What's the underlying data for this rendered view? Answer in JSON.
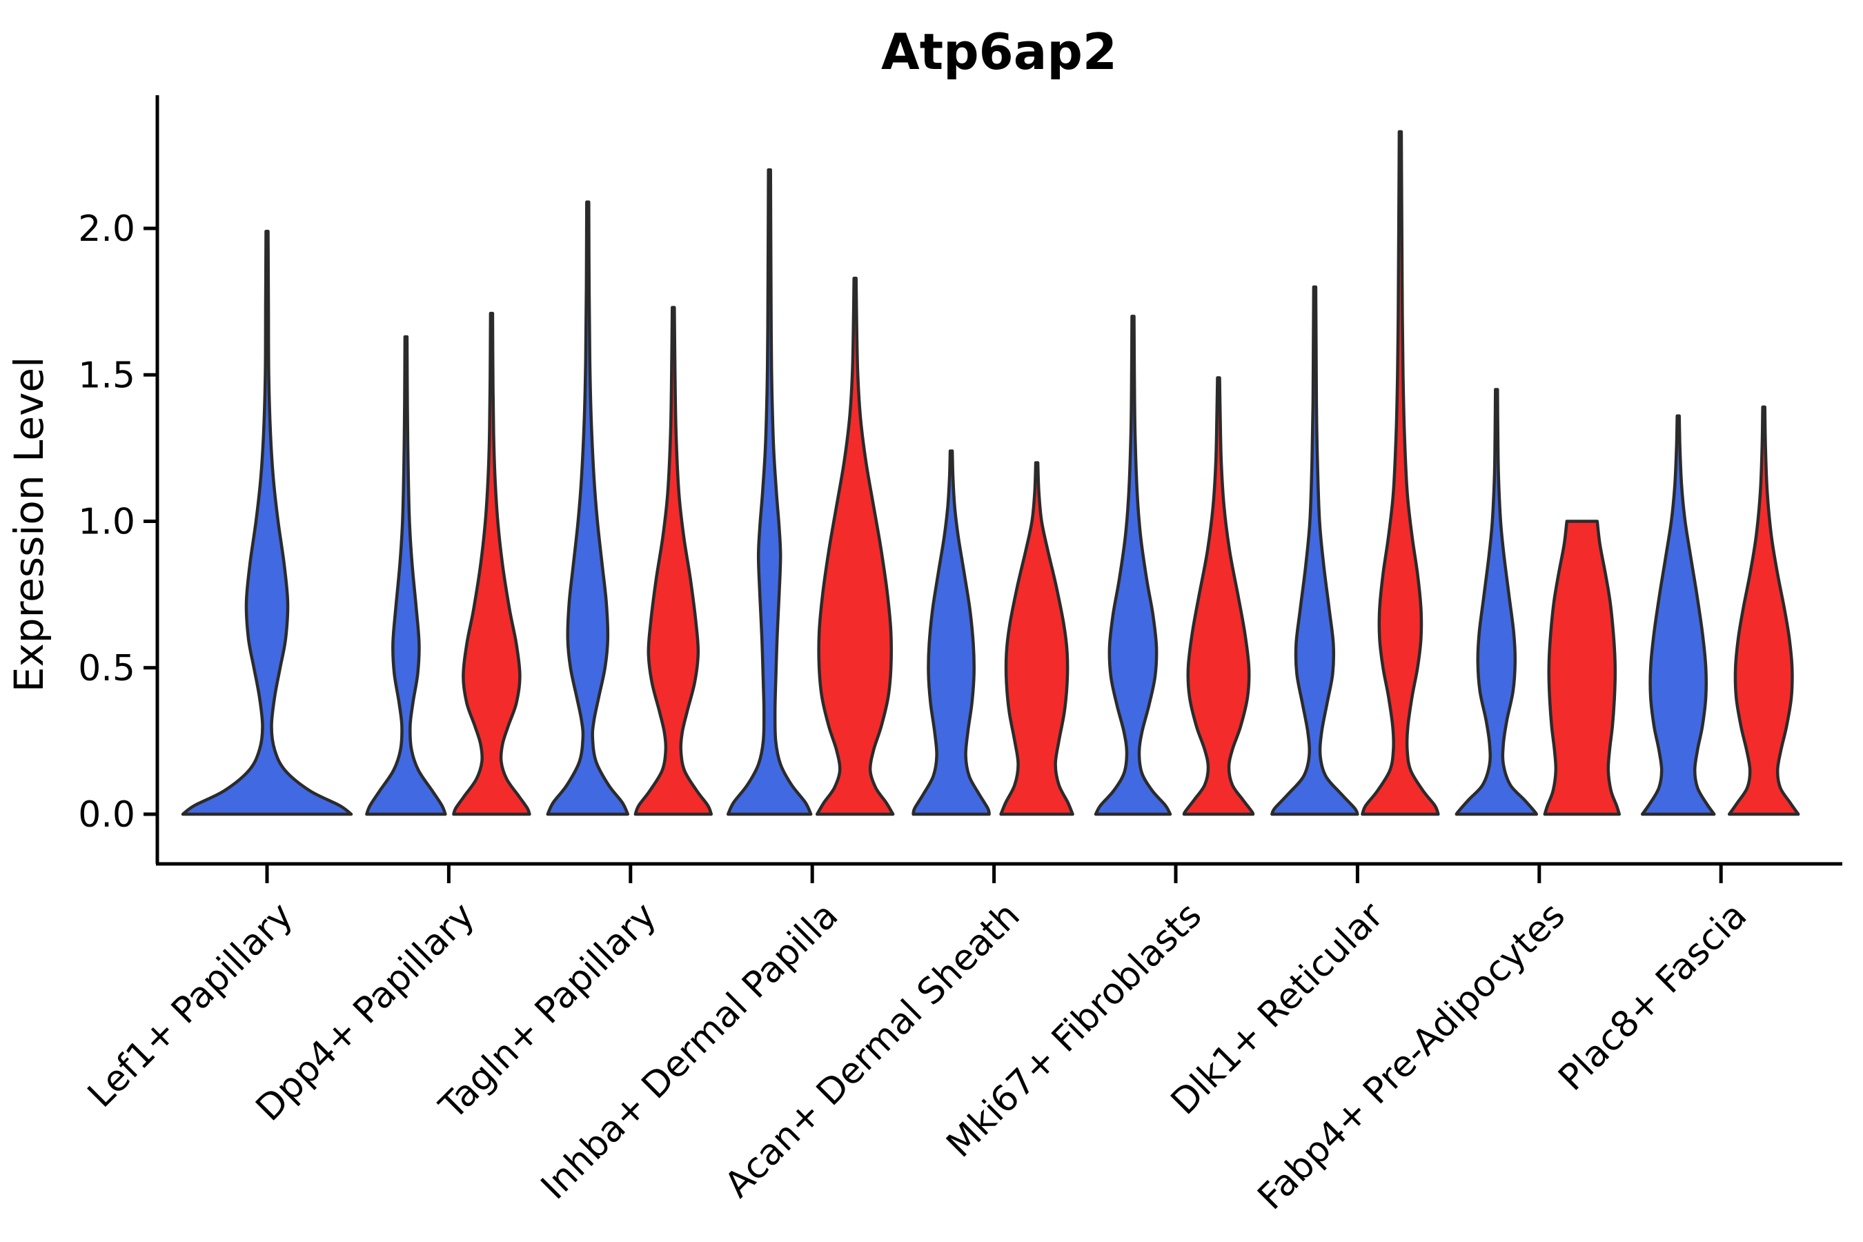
{
  "title": "Atp6ap2",
  "ylabel": "Expression Level",
  "chart_data": {
    "type": "violin",
    "title": "Atp6ap2",
    "xlabel": "",
    "ylabel": "Expression Level",
    "ylim": [
      0,
      2.43
    ],
    "yticks": [
      0.0,
      0.5,
      1.0,
      1.5,
      2.0
    ],
    "ytick_labels": [
      "0.0",
      "0.5",
      "1.0",
      "1.5",
      "2.0"
    ],
    "grid": false,
    "legend": "none",
    "colors": {
      "blue": "#4169E1",
      "red": "#F42B2B",
      "outline": "#2B2B2B",
      "axis": "#000000"
    },
    "categories": [
      "Lef1+ Papillary",
      "Dpp4+ Papillary",
      "Tagln+ Papillary",
      "Inhba+ Dermal Papilla",
      "Acan+ Dermal Sheath",
      "Mki67+ Fibroblasts",
      "Dlk1+ Reticular",
      "Fabp4+ Pre-Adipocytes",
      "Plac8+ Fascia"
    ],
    "violins": [
      {
        "category": "Lef1+ Papillary",
        "group": 0,
        "series": "blue",
        "offset": 0,
        "peak": 1.99,
        "profile": [
          [
            1.99,
            1.5
          ],
          [
            1.75,
            2
          ],
          [
            1.5,
            2.5
          ],
          [
            1.3,
            5
          ],
          [
            1.15,
            9
          ],
          [
            1.0,
            16
          ],
          [
            0.85,
            25
          ],
          [
            0.72,
            30
          ],
          [
            0.6,
            27
          ],
          [
            0.5,
            19
          ],
          [
            0.4,
            11
          ],
          [
            0.3,
            6.5
          ],
          [
            0.22,
            11
          ],
          [
            0.15,
            26
          ],
          [
            0.08,
            62
          ],
          [
            0.03,
            105
          ],
          [
            0.0,
            122
          ]
        ]
      },
      {
        "category": "Dpp4+ Papillary",
        "group": 1,
        "series": "blue",
        "offset": -62,
        "peak": 1.63,
        "profile": [
          [
            1.63,
            1.5
          ],
          [
            1.4,
            2
          ],
          [
            1.2,
            3
          ],
          [
            1.0,
            5
          ],
          [
            0.85,
            9
          ],
          [
            0.7,
            15
          ],
          [
            0.58,
            19
          ],
          [
            0.48,
            17
          ],
          [
            0.38,
            10
          ],
          [
            0.3,
            6
          ],
          [
            0.22,
            8
          ],
          [
            0.15,
            18
          ],
          [
            0.08,
            38
          ],
          [
            0.03,
            52
          ],
          [
            0.0,
            57
          ]
        ]
      },
      {
        "category": "Dpp4+ Papillary",
        "group": 1,
        "series": "red",
        "offset": 62,
        "peak": 1.71,
        "profile": [
          [
            1.71,
            1.5
          ],
          [
            1.5,
            2
          ],
          [
            1.3,
            3
          ],
          [
            1.15,
            5
          ],
          [
            1.0,
            9
          ],
          [
            0.85,
            16
          ],
          [
            0.7,
            26
          ],
          [
            0.58,
            36
          ],
          [
            0.47,
            41
          ],
          [
            0.38,
            36
          ],
          [
            0.3,
            24
          ],
          [
            0.24,
            16
          ],
          [
            0.18,
            14
          ],
          [
            0.12,
            22
          ],
          [
            0.06,
            40
          ],
          [
            0.02,
            52
          ],
          [
            0.0,
            55
          ]
        ]
      },
      {
        "category": "Tagln+ Papillary",
        "group": 2,
        "series": "blue",
        "offset": -62,
        "peak": 2.09,
        "profile": [
          [
            2.09,
            1.5
          ],
          [
            1.8,
            2
          ],
          [
            1.55,
            3
          ],
          [
            1.35,
            5
          ],
          [
            1.15,
            9
          ],
          [
            1.0,
            14
          ],
          [
            0.85,
            21
          ],
          [
            0.72,
            27
          ],
          [
            0.6,
            29
          ],
          [
            0.5,
            25
          ],
          [
            0.4,
            16
          ],
          [
            0.32,
            9
          ],
          [
            0.26,
            7
          ],
          [
            0.18,
            12
          ],
          [
            0.1,
            30
          ],
          [
            0.04,
            50
          ],
          [
            0.0,
            58
          ]
        ]
      },
      {
        "category": "Tagln+ Papillary",
        "group": 2,
        "series": "red",
        "offset": 62,
        "peak": 1.73,
        "profile": [
          [
            1.73,
            1.5
          ],
          [
            1.5,
            2.5
          ],
          [
            1.3,
            4
          ],
          [
            1.1,
            8
          ],
          [
            0.95,
            15
          ],
          [
            0.8,
            25
          ],
          [
            0.65,
            33
          ],
          [
            0.55,
            36
          ],
          [
            0.45,
            31
          ],
          [
            0.35,
            20
          ],
          [
            0.28,
            13
          ],
          [
            0.22,
            11
          ],
          [
            0.15,
            16
          ],
          [
            0.08,
            34
          ],
          [
            0.03,
            50
          ],
          [
            0.0,
            55
          ]
        ]
      },
      {
        "category": "Inhba+ Dermal Papilla",
        "group": 3,
        "series": "blue",
        "offset": -62,
        "peak": 2.2,
        "profile": [
          [
            2.2,
            1.5
          ],
          [
            1.9,
            2
          ],
          [
            1.65,
            2.5
          ],
          [
            1.45,
            3.5
          ],
          [
            1.25,
            6
          ],
          [
            1.1,
            10
          ],
          [
            0.98,
            14
          ],
          [
            0.88,
            16
          ],
          [
            0.75,
            14
          ],
          [
            0.6,
            11
          ],
          [
            0.45,
            9
          ],
          [
            0.35,
            8
          ],
          [
            0.25,
            9
          ],
          [
            0.17,
            16
          ],
          [
            0.1,
            32
          ],
          [
            0.04,
            52
          ],
          [
            0.0,
            60
          ]
        ]
      },
      {
        "category": "Inhba+ Dermal Papilla",
        "group": 3,
        "series": "red",
        "offset": 62,
        "peak": 1.83,
        "profile": [
          [
            1.83,
            1.5
          ],
          [
            1.65,
            2.5
          ],
          [
            1.5,
            4
          ],
          [
            1.35,
            8
          ],
          [
            1.2,
            16
          ],
          [
            1.05,
            27
          ],
          [
            0.9,
            38
          ],
          [
            0.75,
            47
          ],
          [
            0.62,
            52
          ],
          [
            0.5,
            52
          ],
          [
            0.4,
            48
          ],
          [
            0.3,
            38
          ],
          [
            0.22,
            27
          ],
          [
            0.15,
            22
          ],
          [
            0.09,
            30
          ],
          [
            0.04,
            45
          ],
          [
            0.0,
            55
          ]
        ]
      },
      {
        "category": "Acan+ Dermal Sheath",
        "group": 4,
        "series": "blue",
        "offset": -62,
        "peak": 1.24,
        "profile": [
          [
            1.24,
            1.5
          ],
          [
            1.15,
            2.5
          ],
          [
            1.05,
            5
          ],
          [
            0.95,
            10
          ],
          [
            0.82,
            19
          ],
          [
            0.7,
            27
          ],
          [
            0.58,
            32
          ],
          [
            0.48,
            33
          ],
          [
            0.38,
            30
          ],
          [
            0.28,
            24
          ],
          [
            0.2,
            21
          ],
          [
            0.13,
            26
          ],
          [
            0.07,
            40
          ],
          [
            0.02,
            53
          ],
          [
            0.0,
            55
          ]
        ]
      },
      {
        "category": "Acan+ Dermal Sheath",
        "group": 4,
        "series": "red",
        "offset": 62,
        "peak": 1.2,
        "profile": [
          [
            1.2,
            1.5
          ],
          [
            1.1,
            3
          ],
          [
            1.0,
            7
          ],
          [
            0.9,
            16
          ],
          [
            0.78,
            28
          ],
          [
            0.65,
            39
          ],
          [
            0.55,
            44
          ],
          [
            0.45,
            44
          ],
          [
            0.35,
            40
          ],
          [
            0.25,
            32
          ],
          [
            0.17,
            27
          ],
          [
            0.1,
            32
          ],
          [
            0.04,
            45
          ],
          [
            0.0,
            52
          ]
        ]
      },
      {
        "category": "Mki67+ Fibroblasts",
        "group": 5,
        "series": "blue",
        "offset": -62,
        "peak": 1.7,
        "profile": [
          [
            1.7,
            1.5
          ],
          [
            1.5,
            2
          ],
          [
            1.3,
            3
          ],
          [
            1.1,
            6
          ],
          [
            0.95,
            11
          ],
          [
            0.8,
            20
          ],
          [
            0.68,
            29
          ],
          [
            0.57,
            34
          ],
          [
            0.47,
            32
          ],
          [
            0.37,
            23
          ],
          [
            0.28,
            13
          ],
          [
            0.21,
            9
          ],
          [
            0.14,
            13
          ],
          [
            0.08,
            28
          ],
          [
            0.03,
            47
          ],
          [
            0.0,
            54
          ]
        ]
      },
      {
        "category": "Mki67+ Fibroblasts",
        "group": 5,
        "series": "red",
        "offset": 62,
        "peak": 1.49,
        "profile": [
          [
            1.49,
            1.5
          ],
          [
            1.35,
            2.5
          ],
          [
            1.2,
            4
          ],
          [
            1.05,
            8
          ],
          [
            0.9,
            16
          ],
          [
            0.75,
            28
          ],
          [
            0.62,
            38
          ],
          [
            0.5,
            44
          ],
          [
            0.4,
            42
          ],
          [
            0.3,
            32
          ],
          [
            0.22,
            20
          ],
          [
            0.16,
            15
          ],
          [
            0.1,
            20
          ],
          [
            0.05,
            35
          ],
          [
            0.01,
            48
          ],
          [
            0.0,
            50
          ]
        ]
      },
      {
        "category": "Dlk1+ Reticular",
        "group": 6,
        "series": "blue",
        "offset": -62,
        "peak": 1.8,
        "profile": [
          [
            1.8,
            1.5
          ],
          [
            1.6,
            2
          ],
          [
            1.4,
            2.5
          ],
          [
            1.2,
            4
          ],
          [
            1.0,
            7
          ],
          [
            0.85,
            13
          ],
          [
            0.7,
            21
          ],
          [
            0.58,
            27
          ],
          [
            0.48,
            26
          ],
          [
            0.38,
            18
          ],
          [
            0.28,
            10
          ],
          [
            0.2,
            8
          ],
          [
            0.13,
            16
          ],
          [
            0.07,
            38
          ],
          [
            0.02,
            58
          ],
          [
            0.0,
            62
          ]
        ]
      },
      {
        "category": "Dlk1+ Reticular",
        "group": 6,
        "series": "red",
        "offset": 62,
        "peak": 2.33,
        "profile": [
          [
            2.33,
            1.5
          ],
          [
            2.1,
            2
          ],
          [
            1.9,
            2.5
          ],
          [
            1.7,
            3
          ],
          [
            1.5,
            4
          ],
          [
            1.3,
            6
          ],
          [
            1.1,
            10
          ],
          [
            0.95,
            17
          ],
          [
            0.82,
            25
          ],
          [
            0.7,
            30
          ],
          [
            0.6,
            30
          ],
          [
            0.5,
            25
          ],
          [
            0.4,
            17
          ],
          [
            0.3,
            11
          ],
          [
            0.22,
            10
          ],
          [
            0.15,
            15
          ],
          [
            0.08,
            33
          ],
          [
            0.03,
            50
          ],
          [
            0.0,
            55
          ]
        ]
      },
      {
        "category": "Fabp4+ Pre-Adipocytes",
        "group": 7,
        "series": "blue",
        "offset": -62,
        "peak": 1.45,
        "profile": [
          [
            1.45,
            1.5
          ],
          [
            1.3,
            2
          ],
          [
            1.15,
            3
          ],
          [
            1.0,
            6
          ],
          [
            0.88,
            11
          ],
          [
            0.75,
            18
          ],
          [
            0.62,
            25
          ],
          [
            0.52,
            27
          ],
          [
            0.42,
            24
          ],
          [
            0.32,
            15
          ],
          [
            0.24,
            10
          ],
          [
            0.17,
            10
          ],
          [
            0.1,
            20
          ],
          [
            0.05,
            40
          ],
          [
            0.01,
            55
          ],
          [
            0.0,
            58
          ]
        ]
      },
      {
        "category": "Fabp4+ Pre-Adipocytes",
        "group": 7,
        "series": "red",
        "offset": 62,
        "peak": 1.0,
        "flat_top": true,
        "profile": [
          [
            1.0,
            22
          ],
          [
            0.92,
            26
          ],
          [
            0.82,
            34
          ],
          [
            0.72,
            41
          ],
          [
            0.6,
            46
          ],
          [
            0.5,
            48
          ],
          [
            0.4,
            47
          ],
          [
            0.3,
            44
          ],
          [
            0.22,
            40
          ],
          [
            0.15,
            38
          ],
          [
            0.08,
            42
          ],
          [
            0.03,
            50
          ],
          [
            0.0,
            54
          ]
        ]
      },
      {
        "category": "Plac8+ Fascia",
        "group": 8,
        "series": "blue",
        "offset": -62,
        "peak": 1.36,
        "profile": [
          [
            1.36,
            1.5
          ],
          [
            1.25,
            2.5
          ],
          [
            1.12,
            5
          ],
          [
            1.0,
            10
          ],
          [
            0.88,
            18
          ],
          [
            0.75,
            27
          ],
          [
            0.62,
            35
          ],
          [
            0.5,
            40
          ],
          [
            0.4,
            40
          ],
          [
            0.3,
            35
          ],
          [
            0.22,
            28
          ],
          [
            0.15,
            24
          ],
          [
            0.09,
            28
          ],
          [
            0.04,
            40
          ],
          [
            0.0,
            52
          ]
        ]
      },
      {
        "category": "Plac8+ Fascia",
        "group": 8,
        "series": "red",
        "offset": 62,
        "peak": 1.39,
        "profile": [
          [
            1.39,
            1.5
          ],
          [
            1.25,
            2.5
          ],
          [
            1.1,
            5
          ],
          [
            0.95,
            11
          ],
          [
            0.82,
            20
          ],
          [
            0.7,
            30
          ],
          [
            0.6,
            37
          ],
          [
            0.5,
            41
          ],
          [
            0.4,
            40
          ],
          [
            0.3,
            33
          ],
          [
            0.22,
            25
          ],
          [
            0.15,
            20
          ],
          [
            0.09,
            24
          ],
          [
            0.04,
            38
          ],
          [
            0.0,
            50
          ]
        ]
      }
    ]
  }
}
